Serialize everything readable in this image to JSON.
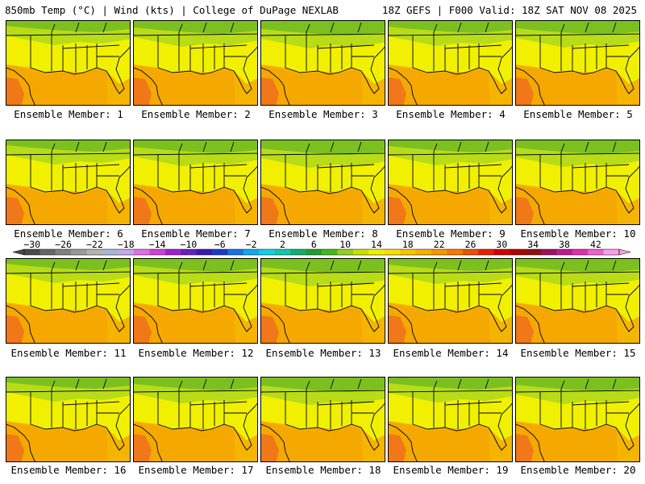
{
  "header": {
    "title": "850mb Temp (°C) | Wind (kts) | College of DuPage NEXLAB",
    "run_info": "18Z GEFS | F000 Valid: 18Z SAT NOV 08 2025"
  },
  "members": [
    "Ensemble Member: 1",
    "Ensemble Member: 2",
    "Ensemble Member: 3",
    "Ensemble Member: 4",
    "Ensemble Member: 5",
    "Ensemble Member: 6",
    "Ensemble Member: 7",
    "Ensemble Member: 8",
    "Ensemble Member: 9",
    "Ensemble Member: 10",
    "Ensemble Member: 11",
    "Ensemble Member: 12",
    "Ensemble Member: 13",
    "Ensemble Member: 14",
    "Ensemble Member: 15",
    "Ensemble Member: 16",
    "Ensemble Member: 17",
    "Ensemble Member: 18",
    "Ensemble Member: 19",
    "Ensemble Member: 20"
  ],
  "colorbar": {
    "tick_labels": [
      "−30",
      "−26",
      "−22",
      "−18",
      "−14",
      "−10",
      "−6",
      "−2",
      "2",
      "6",
      "10",
      "14",
      "18",
      "22",
      "26",
      "30",
      "34",
      "38",
      "42"
    ],
    "colors": [
      "#4a4a4a",
      "#666666",
      "#808080",
      "#9a9a9a",
      "#b4b4b4",
      "#a8b8d8",
      "#c8a8e8",
      "#e070e8",
      "#d040d8",
      "#a020d0",
      "#6a20c0",
      "#3a1ab0",
      "#1a3ad0",
      "#1a70e8",
      "#10a8f0",
      "#10d0e8",
      "#10c8b0",
      "#10b070",
      "#20a030",
      "#48b820",
      "#90d020",
      "#c8e000",
      "#f0f000",
      "#f8e000",
      "#f8c800",
      "#f8b000",
      "#f89800",
      "#f87800",
      "#f05000",
      "#e82000",
      "#d00000",
      "#b00000",
      "#901010",
      "#a01060",
      "#c01890",
      "#e030b0",
      "#f060d0",
      "#f8a0e8"
    ]
  },
  "map_palette": {
    "land_green": "#7cc020",
    "land_light": "#b8dc18",
    "land_yellow": "#f0f000",
    "gulf_orange": "#f5b400",
    "hot_orange": "#f07818",
    "border": "#000000"
  }
}
